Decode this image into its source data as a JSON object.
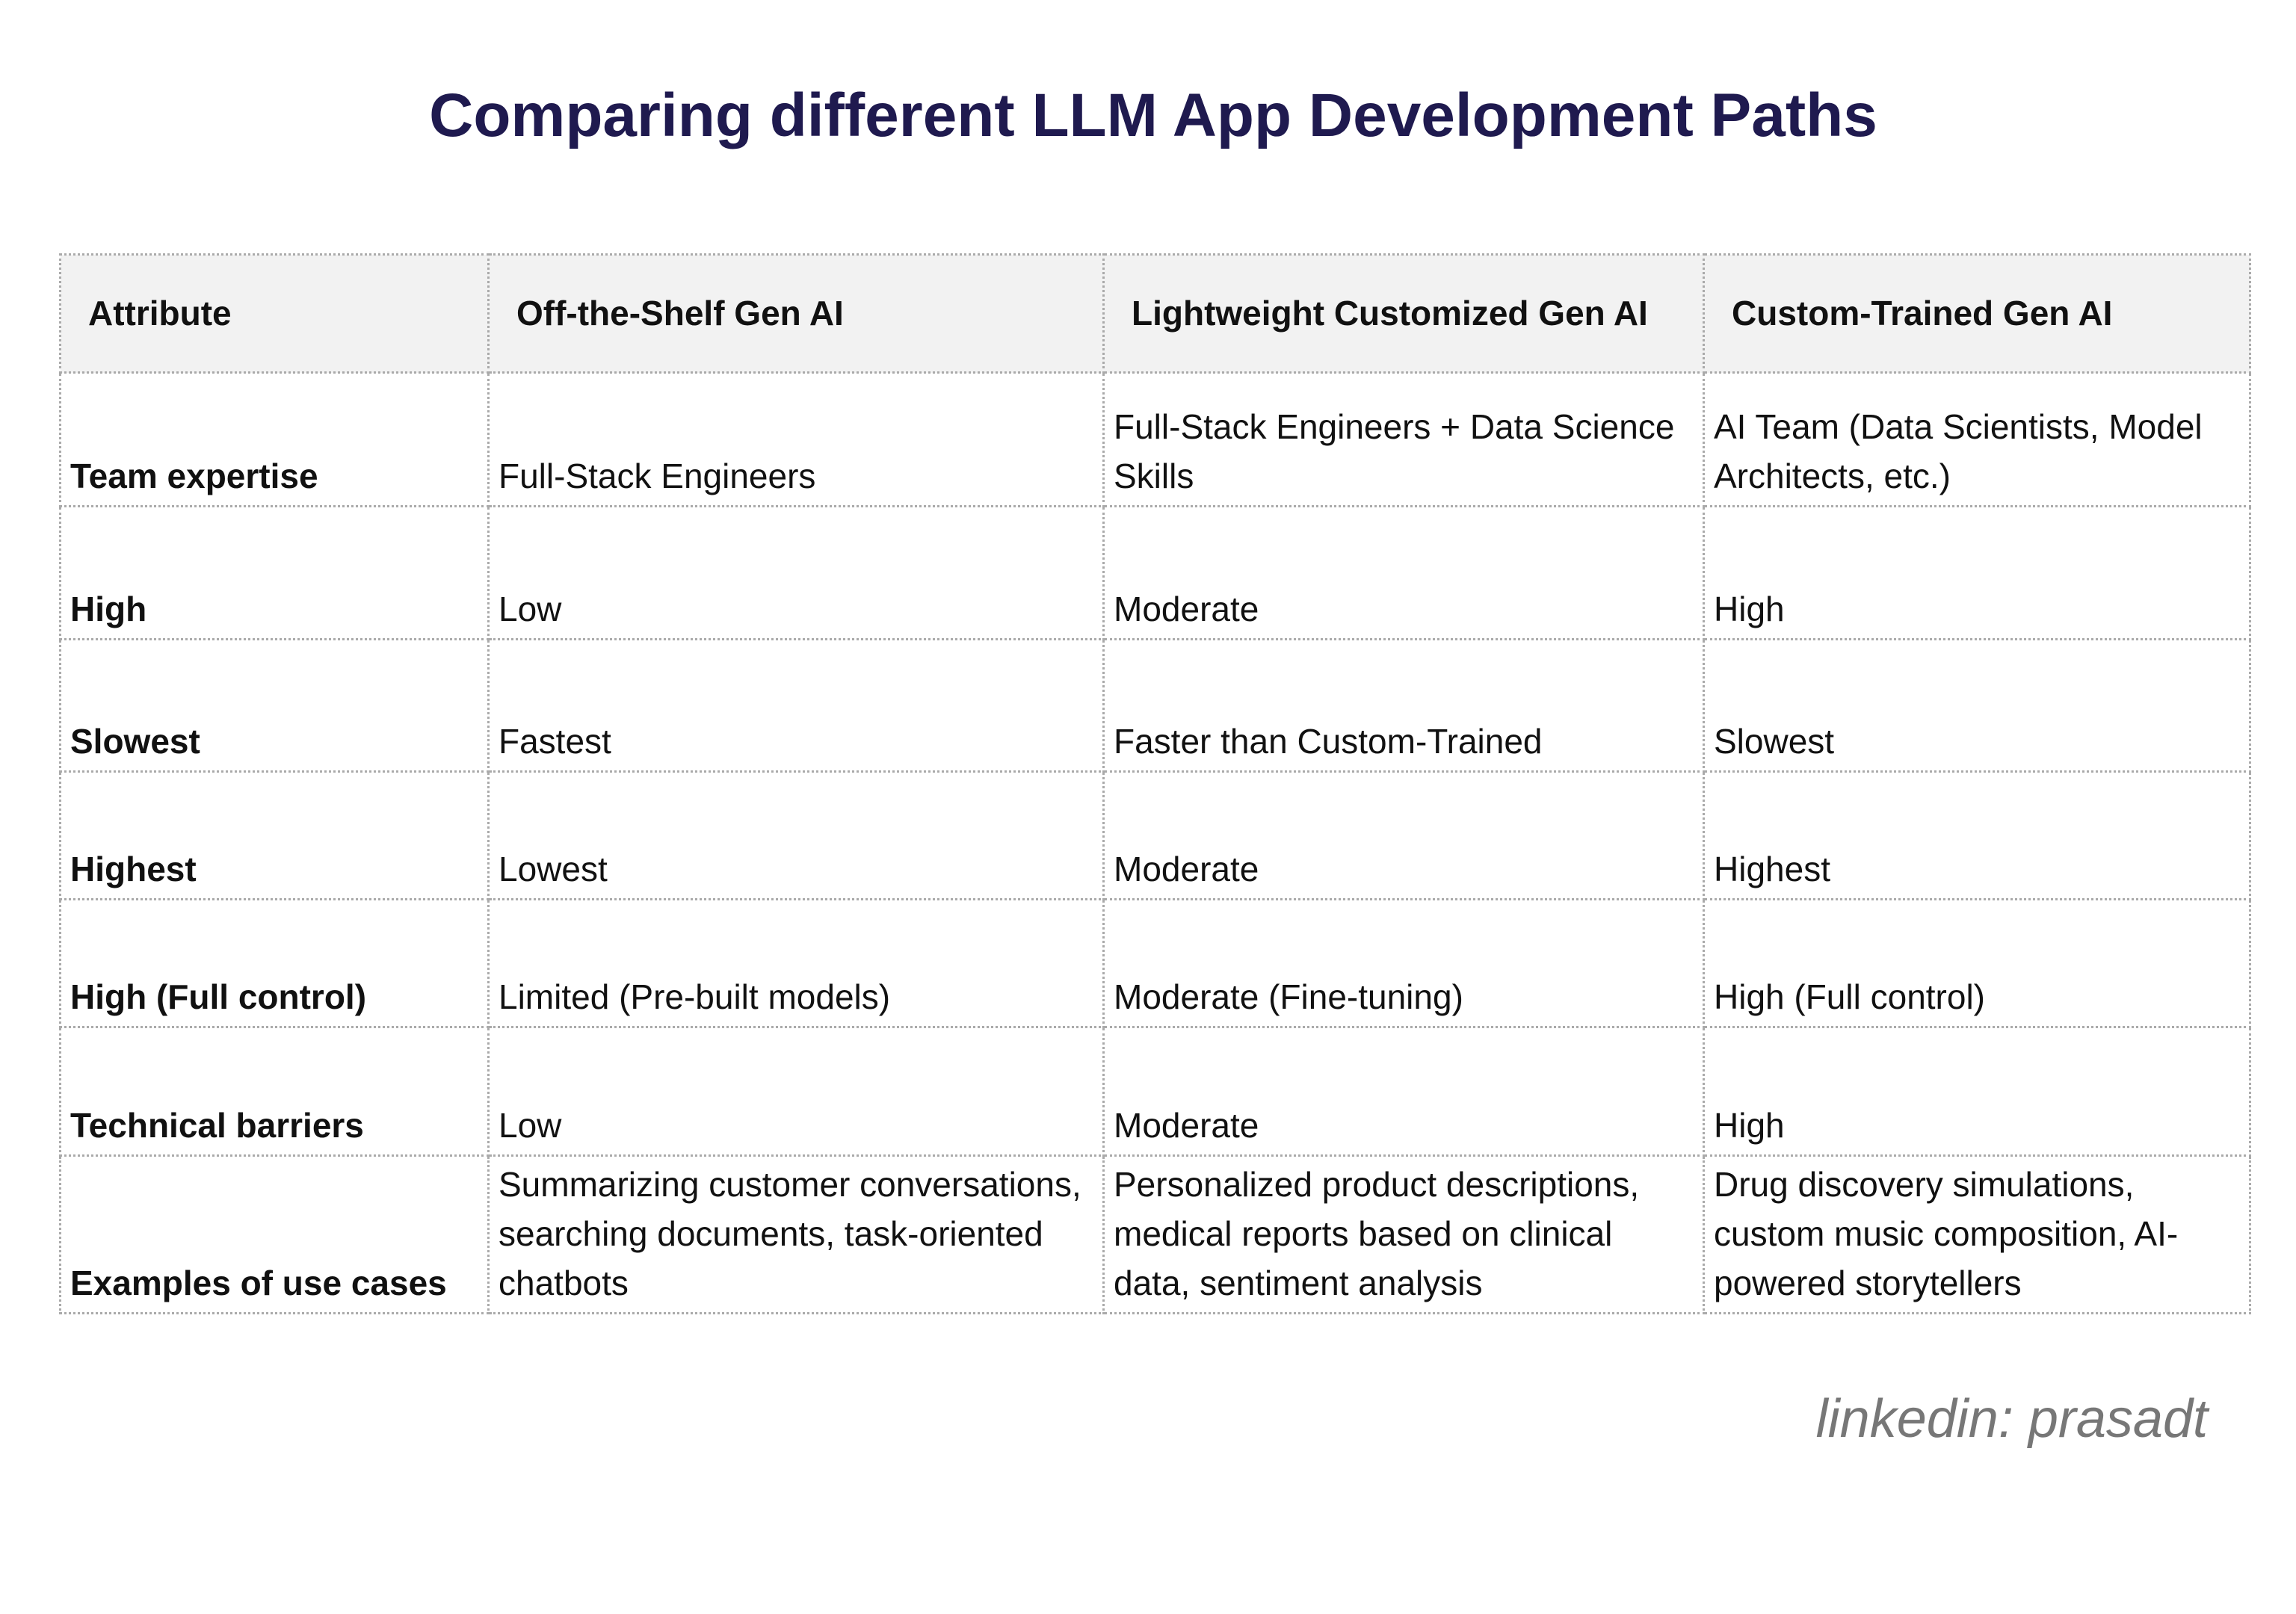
{
  "header": {
    "title": "Comparing different LLM App Development Paths"
  },
  "table": {
    "columns": [
      "Attribute",
      "Off-the-Shelf Gen AI",
      "Lightweight Customized Gen AI",
      "Custom-Trained Gen AI"
    ],
    "rows": [
      [
        "Team expertise",
        "Full-Stack Engineers",
        "Full-Stack Engineers + Data Science Skills",
        "AI Team (Data Scientists, Model Architects, etc.)"
      ],
      [
        "High",
        "Low",
        "Moderate",
        "High"
      ],
      [
        "Slowest",
        "Fastest",
        "Faster than Custom-Trained",
        "Slowest"
      ],
      [
        "Highest",
        "Lowest",
        "Moderate",
        "Highest"
      ],
      [
        "High (Full control)",
        "Limited (Pre-built models)",
        "Moderate (Fine-tuning)",
        "High (Full control)"
      ],
      [
        "Technical barriers",
        "Low",
        "Moderate",
        "High"
      ],
      [
        "Examples of use cases",
        "Summarizing customer conversations, searching documents, task-oriented chatbots",
        "Personalized product descriptions, medical reports based on clinical data, sentiment analysis",
        "Drug discovery simulations, custom music composition, AI-powered storytellers"
      ]
    ]
  },
  "footer": {
    "credit": "linkedin: prasadt"
  }
}
